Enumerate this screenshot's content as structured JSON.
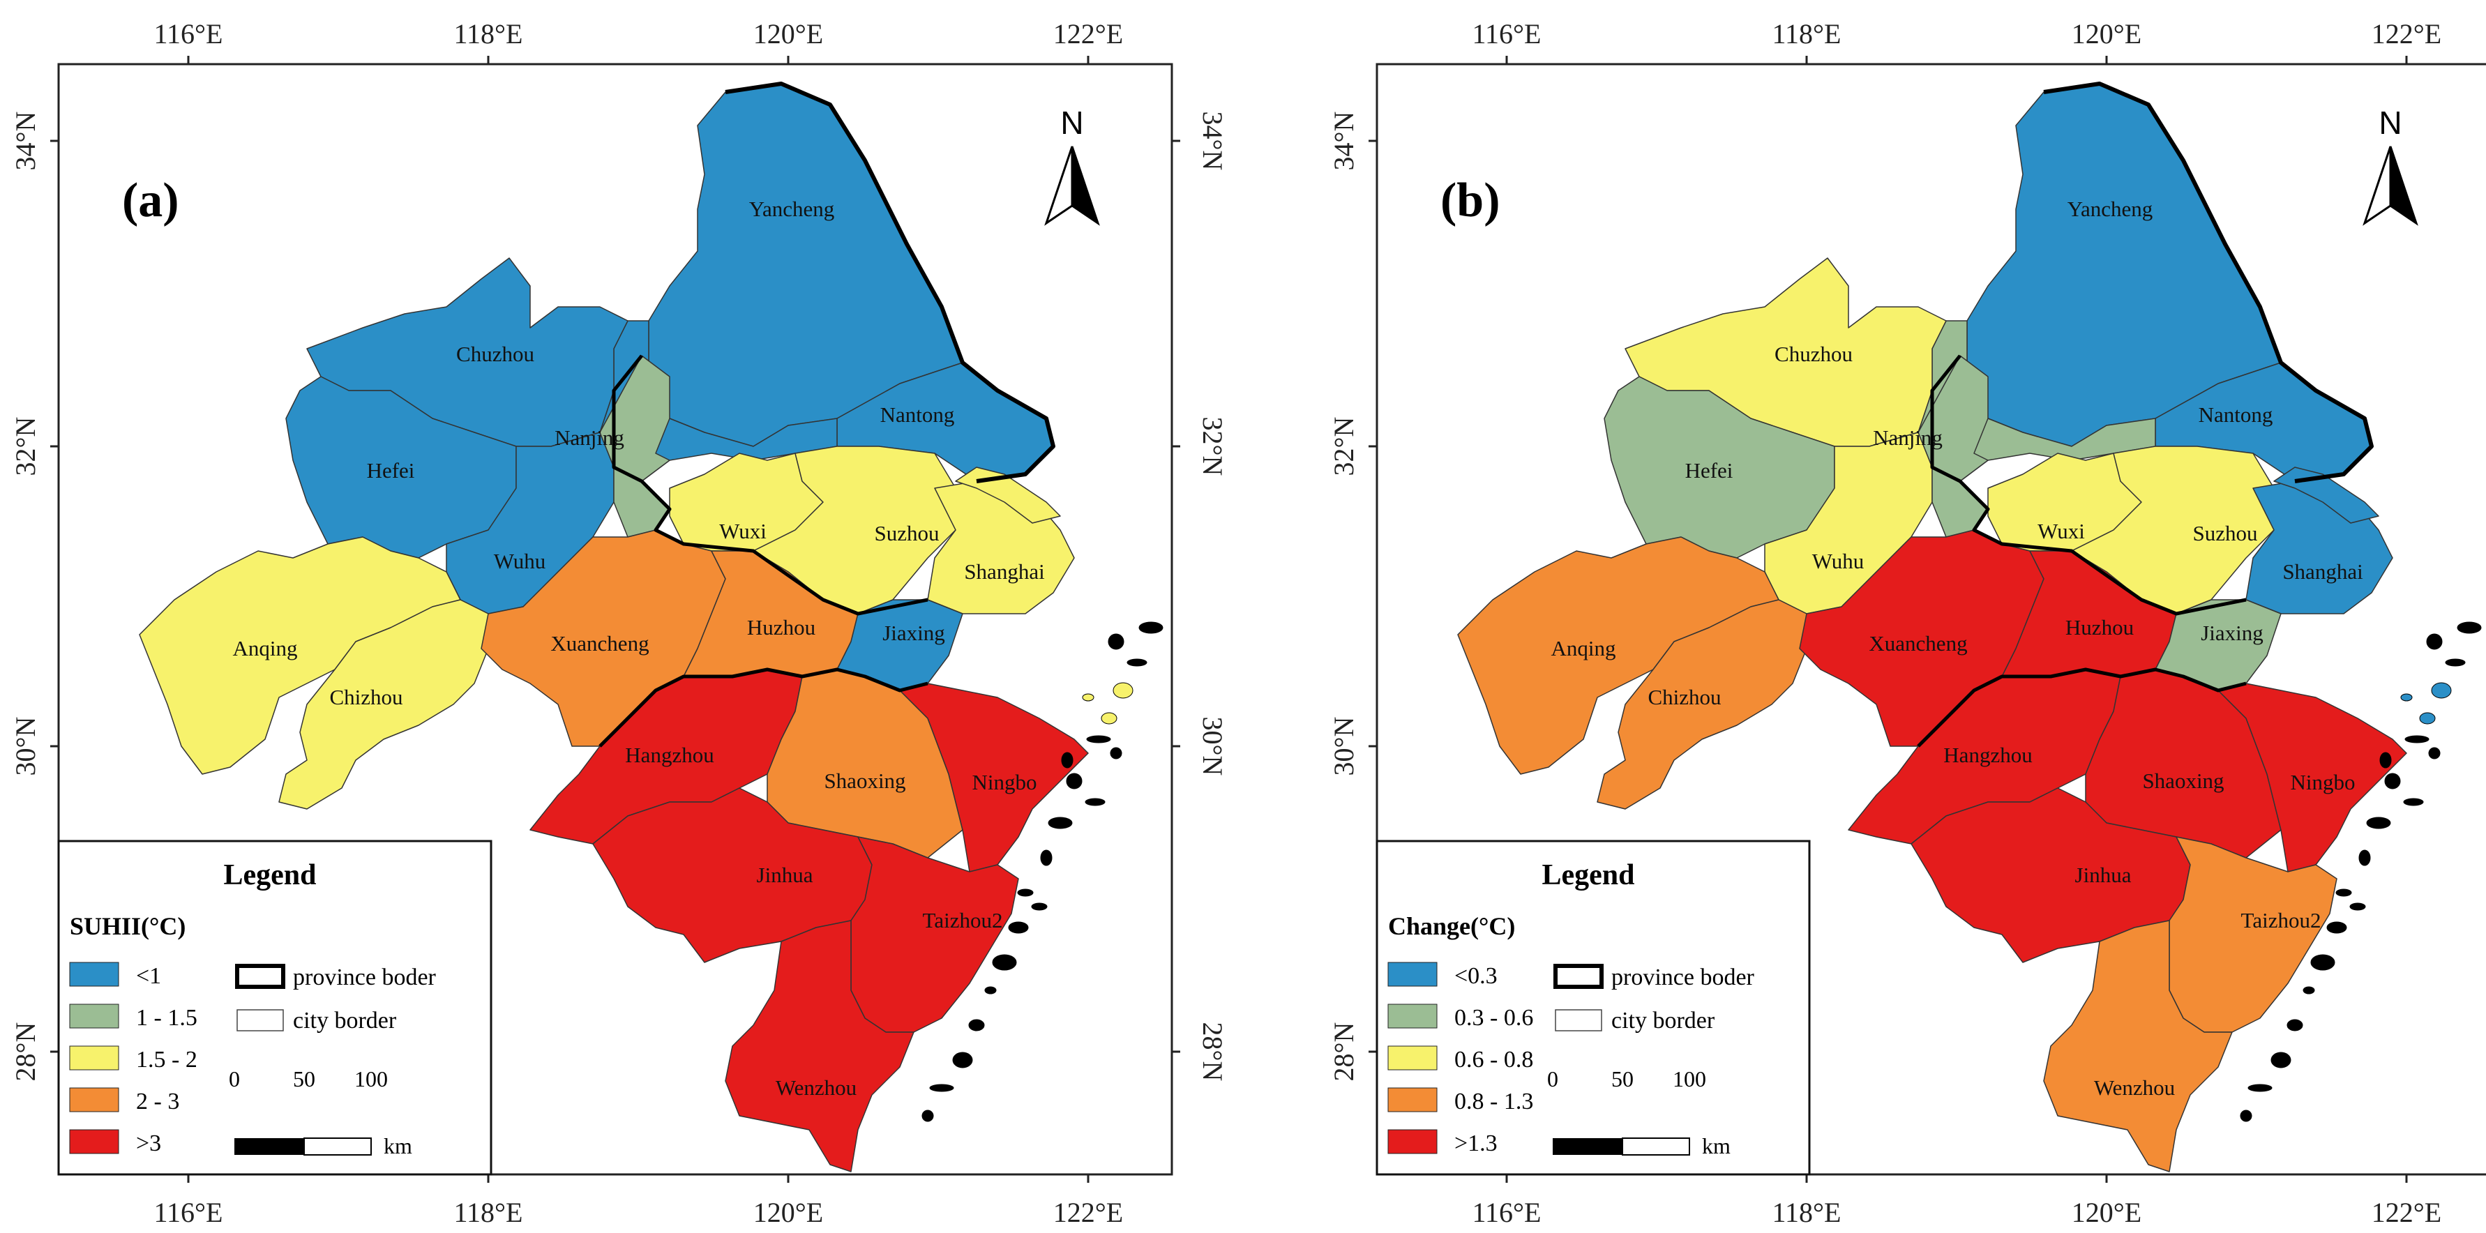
{
  "colors": {
    "blue": "#2b8fc7",
    "green": "#9bbd94",
    "yellow": "#f7f26c",
    "orange": "#f38c35",
    "red": "#e41c1c",
    "border": "#111111"
  },
  "axes": {
    "lon_labels": [
      "116°E",
      "118°E",
      "120°E",
      "122°E"
    ],
    "lat_labels": [
      "34°N",
      "32°N",
      "30°N",
      "28°N"
    ]
  },
  "north_label": "N",
  "scale": {
    "ticks": [
      "0",
      "50",
      "100"
    ],
    "unit": "km"
  },
  "legend_common": {
    "province": "province boder",
    "city": "city border"
  },
  "panels": [
    {
      "id": "a",
      "letter": "(a)",
      "legend_title": "Legend",
      "legend_subtitle": "SUHII(°C)",
      "classes": [
        {
          "label": "<1",
          "color": "#2b8fc7"
        },
        {
          "label": "1 - 1.5",
          "color": "#9bbd94"
        },
        {
          "label": "1.5 - 2",
          "color": "#f7f26c"
        },
        {
          "label": "2 - 3",
          "color": "#f38c35"
        },
        {
          "label": ">3",
          "color": "#e41c1c"
        }
      ],
      "regions": {
        "yancheng": "#2b8fc7",
        "nantong": "#2b8fc7",
        "chuzhou": "#2b8fc7",
        "hefei": "#2b8fc7",
        "wuhu": "#2b8fc7",
        "central": "#2b8fc7",
        "nanjing": "#9bbd94",
        "wuxi": "#f7f26c",
        "suzhou": "#f7f26c",
        "shanghai": "#f7f26c",
        "anqing": "#f7f26c",
        "chizhou": "#f7f26c",
        "xuancheng": "#f38c35",
        "huzhou": "#f38c35",
        "jiaxing": "#2b8fc7",
        "hangzhou": "#e41c1c",
        "shaoxing": "#f38c35",
        "ningbo": "#e41c1c",
        "jinhua": "#e41c1c",
        "taizhou2": "#e41c1c",
        "wenzhou": "#e41c1c",
        "island": "#f7f26c"
      },
      "labels": {
        "yancheng": "Yancheng",
        "chuzhou": "Chuzhou",
        "nanjing": "Nanjing",
        "nantong": "Nantong",
        "hefei": "Hefei",
        "wuxi": "Wuxi",
        "suzhou": "Suzhou",
        "wuhu": "Wuhu",
        "shanghai": "Shanghai",
        "anqing": "Anqing",
        "xuancheng": "Xuancheng",
        "huzhou": "Huzhou",
        "jiaxing": "Jiaxing",
        "chizhou": "Chizhou",
        "hangzhou": "Hangzhou",
        "shaoxing": "Shaoxing",
        "ningbo": "Ningbo",
        "jinhua": "Jinhua",
        "taizhou2": "Taizhou2",
        "wenzhou": "Wenzhou"
      }
    },
    {
      "id": "b",
      "letter": "(b)",
      "legend_title": "Legend",
      "legend_subtitle": "Change(°C)",
      "classes": [
        {
          "label": "<0.3",
          "color": "#2b8fc7"
        },
        {
          "label": "0.3 - 0.6",
          "color": "#9bbd94"
        },
        {
          "label": "0.6 - 0.8",
          "color": "#f7f26c"
        },
        {
          "label": "0.8 - 1.3",
          "color": "#f38c35"
        },
        {
          "label": ">1.3",
          "color": "#e41c1c"
        }
      ],
      "regions": {
        "yancheng": "#2b8fc7",
        "nantong": "#2b8fc7",
        "chuzhou": "#f7f26c",
        "hefei": "#9bbd94",
        "wuhu": "#f7f26c",
        "central": "#9bbd94",
        "nanjing": "#9bbd94",
        "wuxi": "#f7f26c",
        "suzhou": "#f7f26c",
        "shanghai": "#2b8fc7",
        "anqing": "#f38c35",
        "chizhou": "#f38c35",
        "xuancheng": "#e41c1c",
        "huzhou": "#e41c1c",
        "jiaxing": "#9bbd94",
        "hangzhou": "#e41c1c",
        "shaoxing": "#e41c1c",
        "ningbo": "#e41c1c",
        "jinhua": "#e41c1c",
        "taizhou2": "#f38c35",
        "wenzhou": "#f38c35",
        "island": "#2b8fc7"
      },
      "labels": {
        "yancheng": "Yancheng",
        "chuzhou": "Chuzhou",
        "nanjing": "Nanjing",
        "nantong": "Nantong",
        "hefei": "Hefei",
        "wuxi": "Wuxi",
        "suzhou": "Suzhou",
        "wuhu": "Wuhu",
        "shanghai": "Shanghai",
        "anqing": "Anqing",
        "xuancheng": "Xuancheng",
        "huzhou": "Huzhou",
        "jiaxing": "Jiaxing",
        "chizhou": "Chizhou",
        "hangzhou": "Hangzhou",
        "shaoxing": "Shaoxing",
        "ningbo": "Ningbo",
        "jinhua": "Jinhua",
        "taizhou2": "Taizhou2",
        "wenzhou": "Wenzhou"
      }
    }
  ]
}
